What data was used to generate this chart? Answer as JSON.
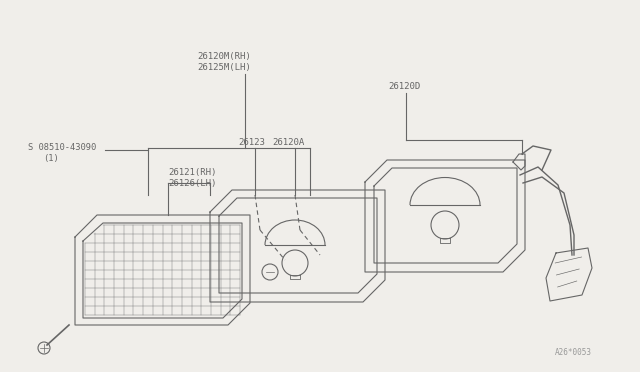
{
  "bg_color": "#f0eeea",
  "line_color": "#666666",
  "text_color": "#666666",
  "watermark": "A26*0053",
  "label_26120M": "26120M(RH)",
  "label_26125M": "26125M(LH)",
  "label_26120D": "26120D",
  "label_08510": "S 08510-43090",
  "label_1": "(1)",
  "label_26123": "26123",
  "label_26120A": "26120A",
  "label_26121": "26121(RH)",
  "label_26126": "26126(LH)"
}
